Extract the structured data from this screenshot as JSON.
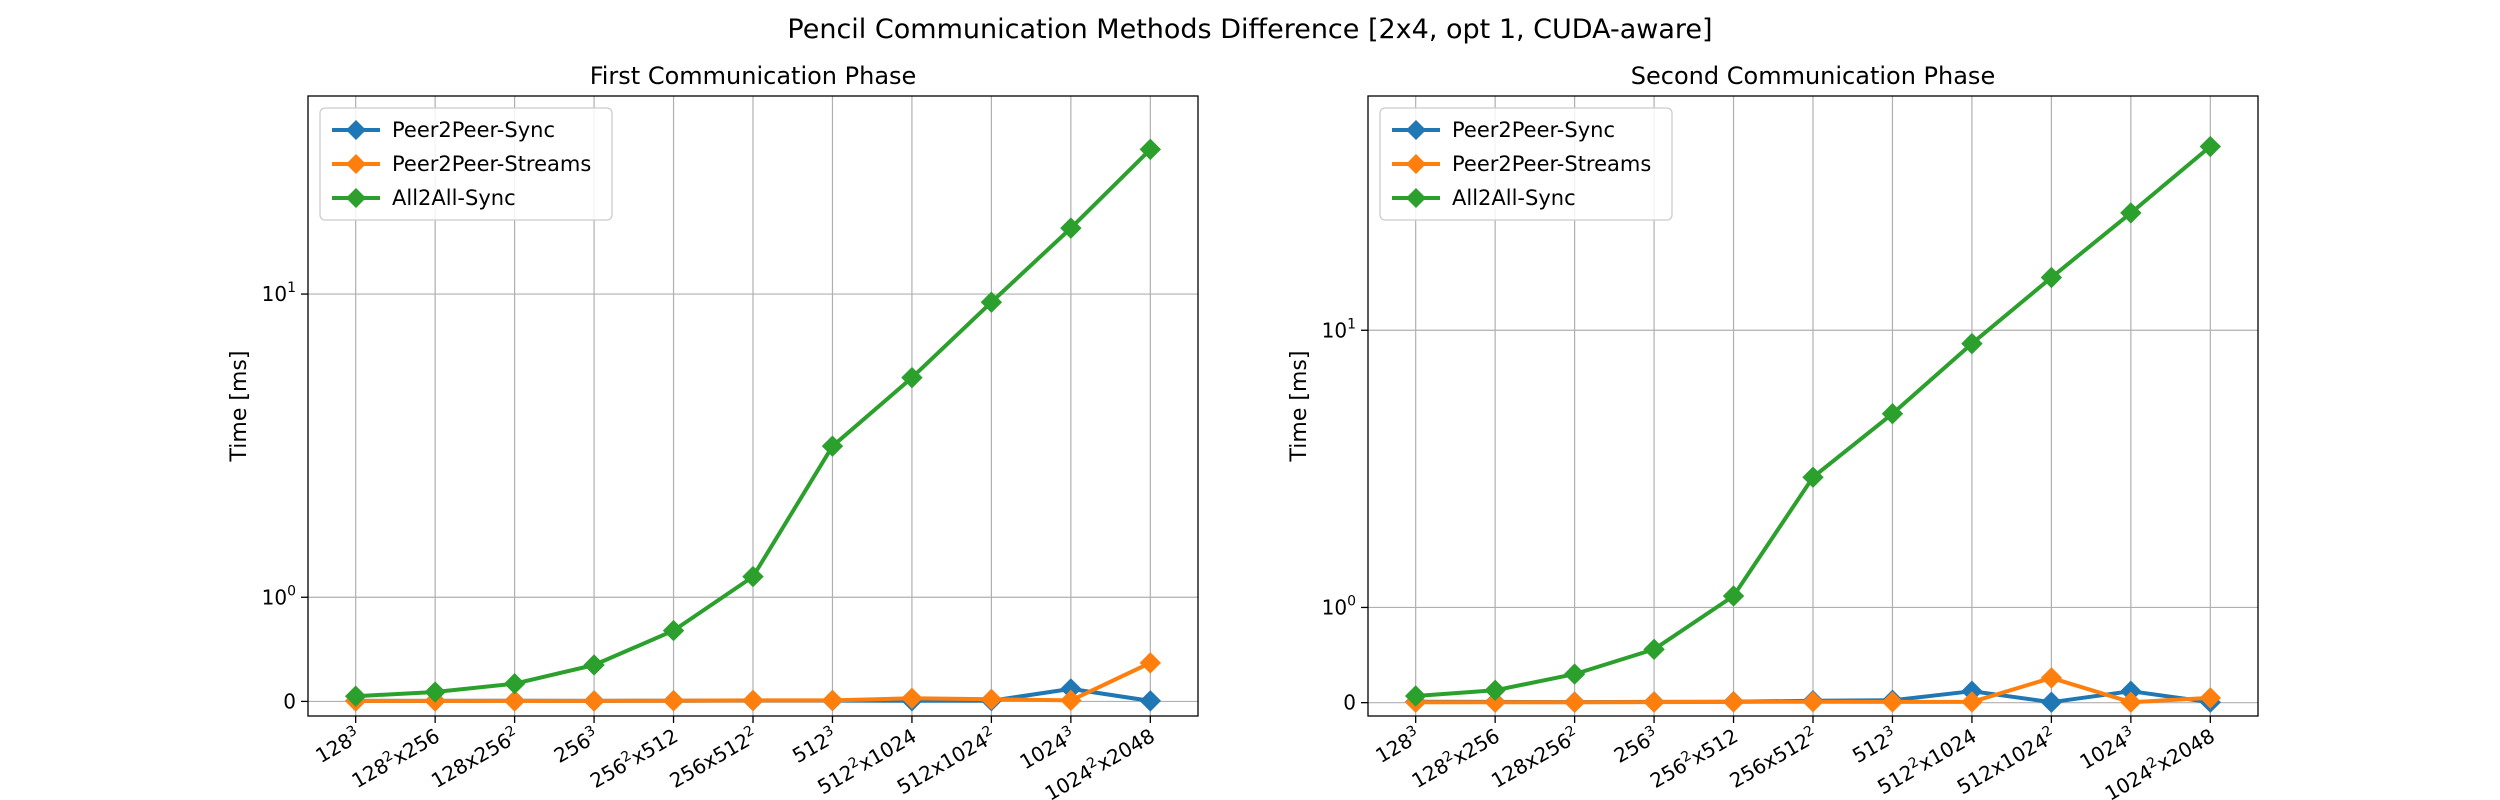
{
  "title": "Pencil Communication Methods Difference [2x4, opt 1, CUDA-aware]",
  "chart_data": [
    {
      "type": "line",
      "title": "First Communication Phase",
      "xlabel": "",
      "ylabel": "Time [ms]",
      "yscale": "symlog",
      "categories": [
        {
          "base": "128",
          "sup": "3",
          "rest": ""
        },
        {
          "base": "128",
          "sup": "2",
          "rest": "x256"
        },
        {
          "base": "128x256",
          "sup": "2",
          "rest": ""
        },
        {
          "base": "256",
          "sup": "3",
          "rest": ""
        },
        {
          "base": "256",
          "sup": "2",
          "rest": "x512"
        },
        {
          "base": "256x512",
          "sup": "2",
          "rest": ""
        },
        {
          "base": "512",
          "sup": "3",
          "rest": ""
        },
        {
          "base": "512",
          "sup": "2",
          "rest": "x1024"
        },
        {
          "base": "512x1024",
          "sup": "2",
          "rest": ""
        },
        {
          "base": "1024",
          "sup": "3",
          "rest": ""
        },
        {
          "base": "1024",
          "sup": "2",
          "rest": "x2048"
        }
      ],
      "yticks": [
        {
          "value": 0,
          "base": "0",
          "sup": ""
        },
        {
          "value": 1,
          "base": "10",
          "sup": "0"
        },
        {
          "value": 10,
          "base": "10",
          "sup": "1"
        }
      ],
      "grid": true,
      "legend_position": "top-left",
      "series": [
        {
          "name": "Peer2Peer-Sync",
          "color": "#1f77b4",
          "values": [
            0.005,
            0.005,
            0.006,
            0.005,
            0.007,
            0.008,
            0.008,
            0.006,
            0.007,
            0.12,
            0.005
          ]
        },
        {
          "name": "Peer2Peer-Streams",
          "color": "#ff7f0e",
          "values": [
            0.005,
            0.005,
            0.005,
            0.005,
            0.007,
            0.01,
            0.01,
            0.03,
            0.02,
            0.01,
            0.37
          ]
        },
        {
          "name": "All2All-Sync",
          "color": "#2ca02c",
          "values": [
            0.05,
            0.09,
            0.17,
            0.35,
            0.68,
            1.17,
            3.15,
            5.3,
            9.4,
            16.5,
            30.0
          ]
        }
      ]
    },
    {
      "type": "line",
      "title": "Second Communication Phase",
      "xlabel": "",
      "ylabel": "Time [ms]",
      "yscale": "symlog",
      "categories": [
        {
          "base": "128",
          "sup": "3",
          "rest": ""
        },
        {
          "base": "128",
          "sup": "2",
          "rest": "x256"
        },
        {
          "base": "128x256",
          "sup": "2",
          "rest": ""
        },
        {
          "base": "256",
          "sup": "3",
          "rest": ""
        },
        {
          "base": "256",
          "sup": "2",
          "rest": "x512"
        },
        {
          "base": "256x512",
          "sup": "2",
          "rest": ""
        },
        {
          "base": "512",
          "sup": "3",
          "rest": ""
        },
        {
          "base": "512",
          "sup": "2",
          "rest": "x1024"
        },
        {
          "base": "512x1024",
          "sup": "2",
          "rest": ""
        },
        {
          "base": "1024",
          "sup": "3",
          "rest": ""
        },
        {
          "base": "1024",
          "sup": "2",
          "rest": "x2048"
        }
      ],
      "yticks": [
        {
          "value": 0,
          "base": "0",
          "sup": ""
        },
        {
          "value": 1,
          "base": "10",
          "sup": "0"
        },
        {
          "value": 10,
          "base": "10",
          "sup": "1"
        }
      ],
      "grid": true,
      "legend_position": "top-left",
      "series": [
        {
          "name": "Peer2Peer-Sync",
          "color": "#1f77b4",
          "values": [
            0.01,
            0.008,
            0.006,
            0.008,
            0.01,
            0.02,
            0.025,
            0.12,
            0.005,
            0.12,
            0.005
          ]
        },
        {
          "name": "Peer2Peer-Streams",
          "color": "#ff7f0e",
          "values": [
            0.005,
            0.005,
            0.005,
            0.006,
            0.008,
            0.01,
            0.008,
            0.008,
            0.26,
            0.005,
            0.05
          ]
        },
        {
          "name": "All2All-Sync",
          "color": "#2ca02c",
          "values": [
            0.07,
            0.13,
            0.3,
            0.56,
            1.1,
            2.95,
            5.0,
            8.95,
            15.5,
            26.5,
            46.0
          ]
        }
      ]
    }
  ]
}
